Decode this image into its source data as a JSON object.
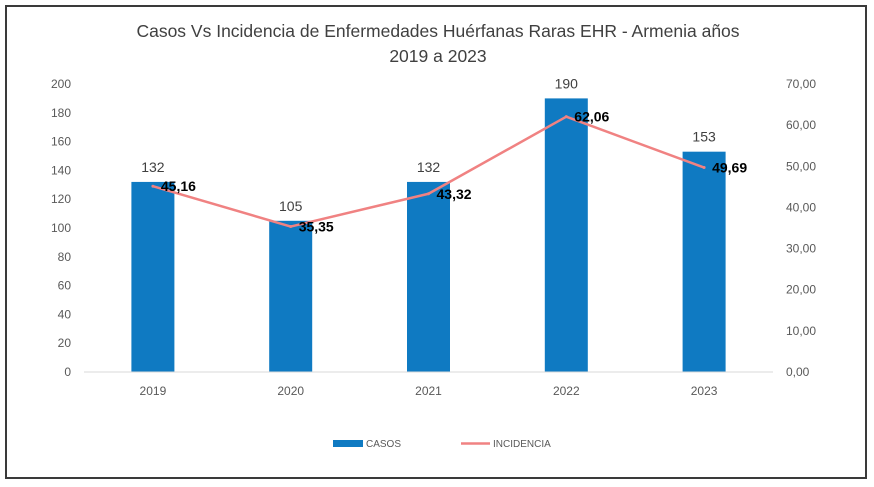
{
  "chart_data": {
    "type": "bar",
    "title_line1": "Casos Vs Incidencia de Enfermedades  Huérfanas Raras EHR - Armenia años",
    "title_line2": "2019 a 2023",
    "categories": [
      "2019",
      "2020",
      "2021",
      "2022",
      "2023"
    ],
    "series": [
      {
        "name": "CASOS",
        "kind": "bar",
        "axis": "left",
        "values": [
          132,
          105,
          132,
          190,
          153
        ],
        "labels": [
          "132",
          "105",
          "132",
          "190",
          "153"
        ],
        "color": "#0f7ac2"
      },
      {
        "name": "INCIDENCIA",
        "kind": "line",
        "axis": "right",
        "values": [
          45.16,
          35.35,
          43.32,
          62.06,
          49.69
        ],
        "labels": [
          "45,16",
          "35,35",
          "43,32",
          "62,06",
          "49,69"
        ],
        "color": "#f08282"
      }
    ],
    "left_axis": {
      "ylim": [
        0,
        200
      ],
      "ticks": [
        "0",
        "20",
        "40",
        "60",
        "80",
        "100",
        "120",
        "140",
        "160",
        "180",
        "200"
      ]
    },
    "right_axis": {
      "ylim": [
        0,
        70
      ],
      "ticks": [
        "0,00",
        "10,00",
        "20,00",
        "30,00",
        "40,00",
        "50,00",
        "60,00",
        "70,00"
      ]
    },
    "grid": false,
    "legend_position": "bottom"
  }
}
